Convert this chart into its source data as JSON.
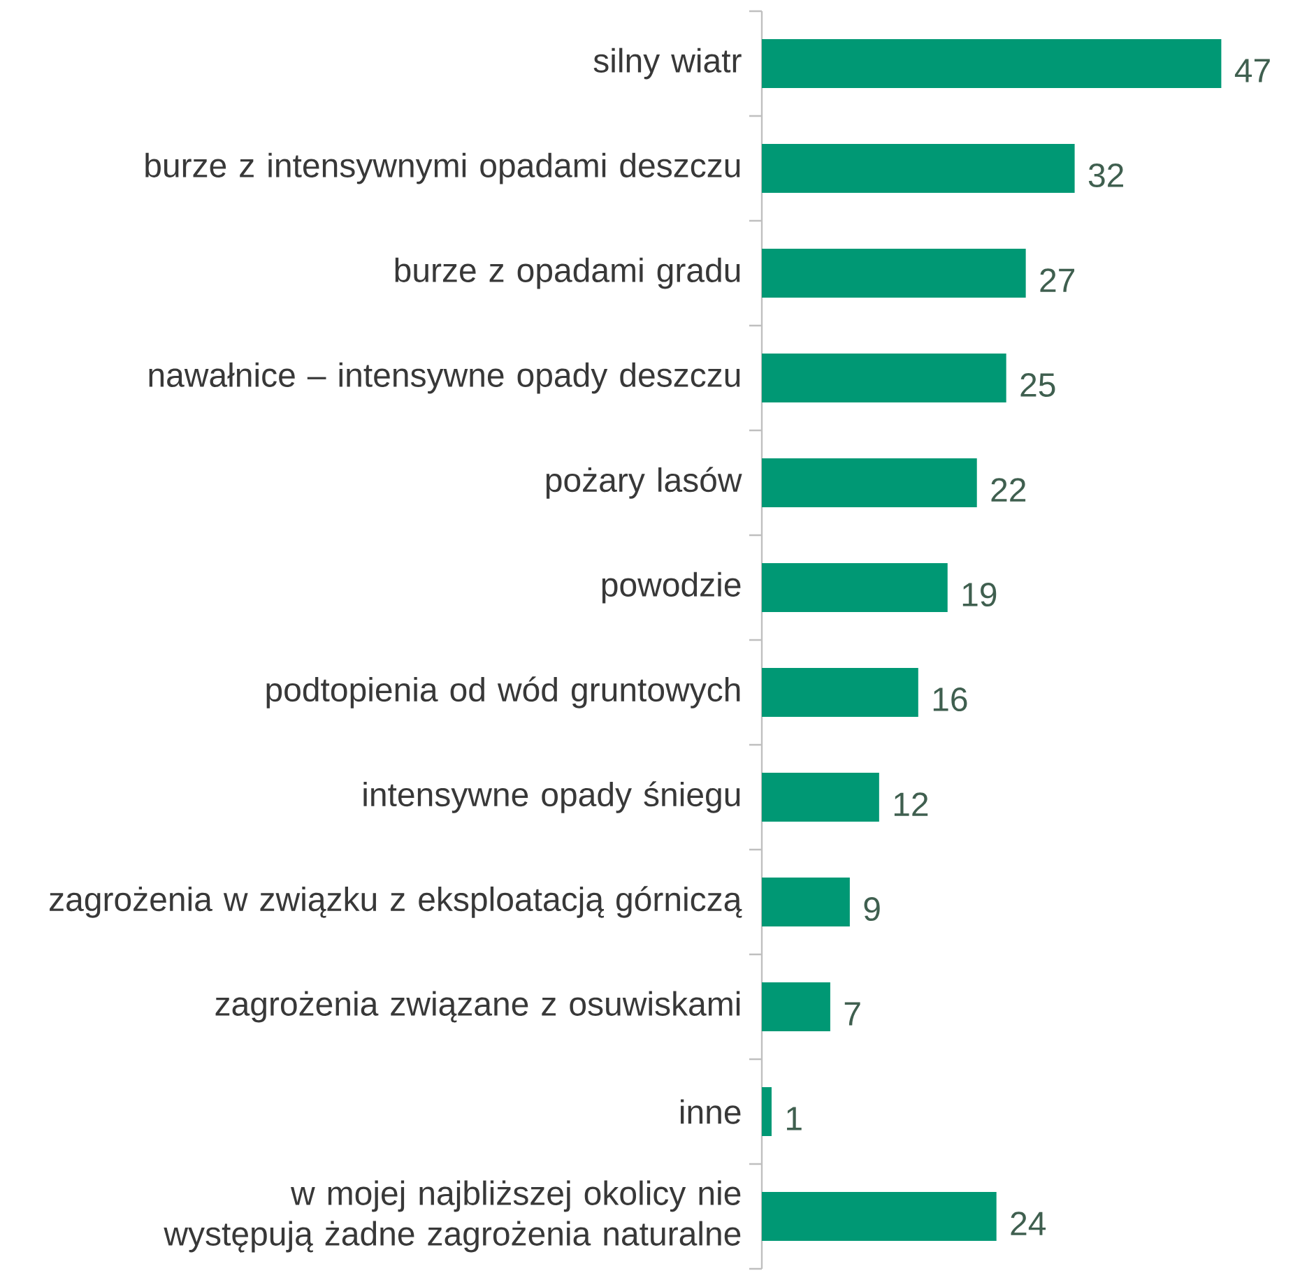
{
  "chart_data": {
    "type": "bar",
    "orientation": "horizontal",
    "categories": [
      "silny wiatr",
      "burze z intensywnymi opadami deszczu",
      "burze z opadami gradu",
      "nawałnice – intensywne opady deszczu",
      "pożary lasów",
      "powodzie",
      "podtopienia od wód gruntowych",
      "intensywne opady śniegu",
      "zagrożenia w związku z eksploatacją górniczą",
      "zagrożenia związane z osuwiskami",
      "inne",
      "w mojej najbliższej okolicy nie występują żadne zagrożenia naturalne"
    ],
    "values": [
      47,
      32,
      27,
      25,
      22,
      19,
      16,
      12,
      9,
      7,
      1,
      24
    ],
    "color": "#009874",
    "data_labels": true,
    "tick_labels": "y"
  }
}
